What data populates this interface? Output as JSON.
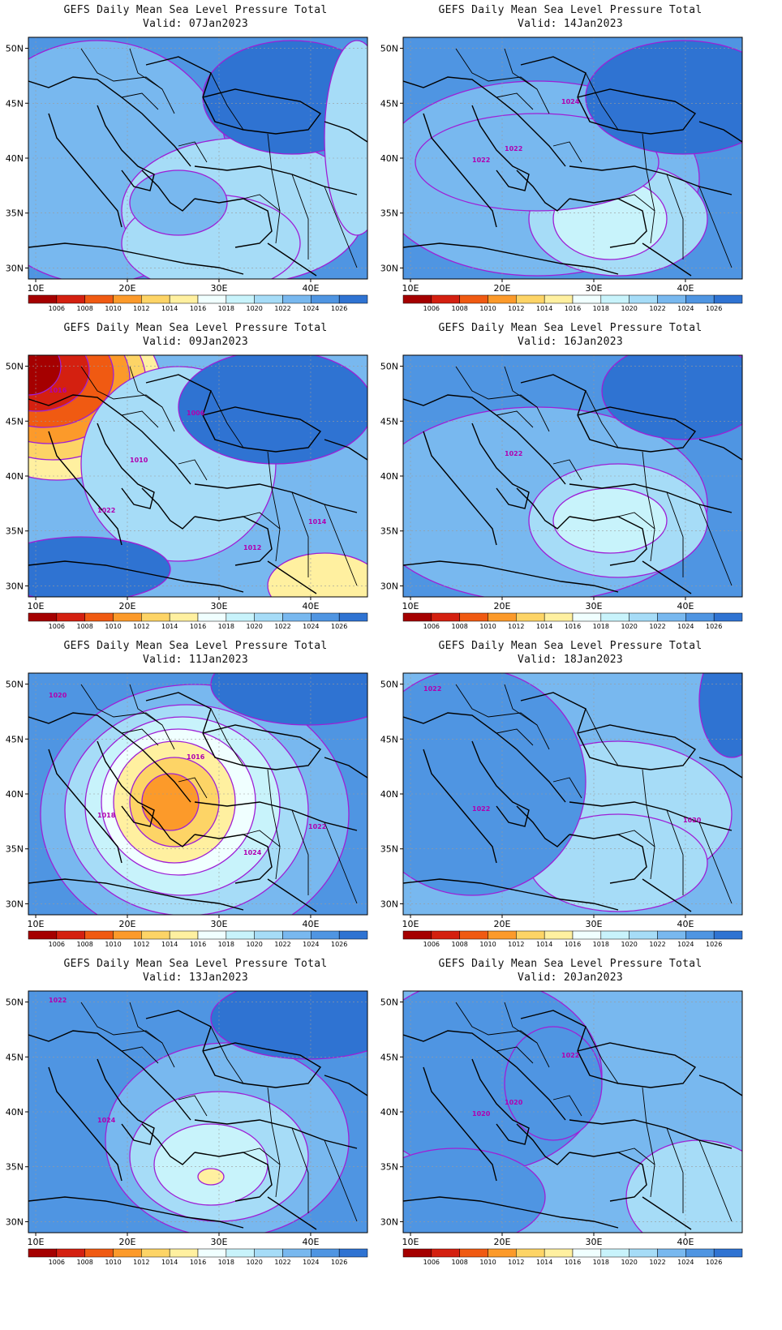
{
  "title": "GEFS Daily Mean Sea Level Pressure Total",
  "valid_prefix": "Valid:",
  "lat_labels": [
    "30N",
    "35N",
    "40N",
    "45N",
    "50N"
  ],
  "lon_labels": [
    "10E",
    "20E",
    "30E",
    "40E"
  ],
  "colorbar": {
    "levels": [
      "1006",
      "1008",
      "1010",
      "1012",
      "1014",
      "1016",
      "1018",
      "1020",
      "1022",
      "1024",
      "1026"
    ],
    "colors": [
      "#a50000",
      "#d42010",
      "#f05a12",
      "#fc9a2a",
      "#fdd466",
      "#fff0a0",
      "#f0ffff",
      "#c8f3fb",
      "#a6dcf7",
      "#78b8ef",
      "#4f95e2",
      "#2f73d2"
    ]
  },
  "contour_color": "#9e1fd6",
  "panels": [
    {
      "valid": "07Jan2023",
      "labels": []
    },
    {
      "valid": "14Jan2023",
      "labels": [
        "1022",
        "1024",
        "1022"
      ]
    },
    {
      "valid": "09Jan2023",
      "labels": [
        "1006",
        "1010",
        "1012",
        "1014",
        "1016",
        "1022"
      ]
    },
    {
      "valid": "16Jan2023",
      "labels": [
        "1022"
      ]
    },
    {
      "valid": "11Jan2023",
      "labels": [
        "1024",
        "1022",
        "1020",
        "1018",
        "1016"
      ]
    },
    {
      "valid": "18Jan2023",
      "labels": [
        "1020",
        "1022",
        "1022"
      ]
    },
    {
      "valid": "13Jan2023",
      "labels": [
        "1022",
        "1024"
      ]
    },
    {
      "valid": "20Jan2023",
      "labels": [
        "1020",
        "1022",
        "1020"
      ]
    }
  ]
}
